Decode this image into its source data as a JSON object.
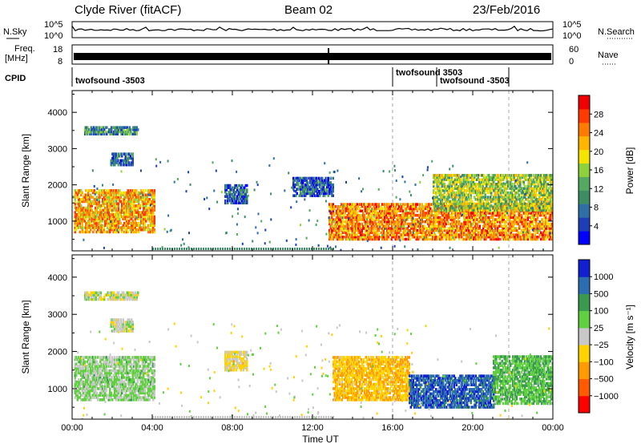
{
  "header": {
    "station": "Clyde River (fitACF)",
    "beam": "Beam 02",
    "date": "23/Feb/2016"
  },
  "top_panels": {
    "nsky_label": "N.Sky",
    "nsearch_label": "N.Search",
    "noise_ticks": [
      "10^5",
      "10^0"
    ],
    "freq_label_1": "Freq.",
    "freq_label_2": "[MHz]",
    "freq_ticks": [
      "18",
      "8"
    ],
    "nave_label": "Nave",
    "nave_ticks": [
      "60",
      "0"
    ],
    "cpid_label": "CPID",
    "cpid_entries": [
      {
        "text": "twofsound -3503",
        "start": 0.0
      },
      {
        "text": "twofsound 3503",
        "start": 16.0
      },
      {
        "text": "twofsound -3503",
        "start": 18.2
      }
    ]
  },
  "chart_data": [
    {
      "type": "heatmap",
      "title": "",
      "quantity": "Power",
      "colorbar_label": "Power [dB]",
      "colorbar_ticks": [
        "28",
        "24",
        "20",
        "16",
        "12",
        "8",
        "4"
      ],
      "colorbar_range": [
        0,
        32
      ],
      "colors": [
        "#0000ff",
        "#1c3fb8",
        "#2e6fa6",
        "#3c8c64",
        "#55a862",
        "#8fd13a",
        "#f5e400",
        "#ffb400",
        "#ff7a00",
        "#ff3a00",
        "#f00000"
      ],
      "ylabel": "Slant Range [km]",
      "y_ticks": [
        1000,
        2000,
        3000,
        4000
      ],
      "ylim": [
        180,
        4600
      ],
      "xlim": [
        0,
        24
      ],
      "x_ticks": [
        "00:00",
        "04:00",
        "08:00",
        "12:00",
        "16:00",
        "20:00",
        "00:00"
      ],
      "regions": [
        {
          "t": [
            0.1,
            4.1
          ],
          "r": [
            700,
            1900
          ],
          "v": 22
        },
        {
          "t": [
            0.6,
            3.3
          ],
          "r": [
            3400,
            3620
          ],
          "v": 10
        },
        {
          "t": [
            1.9,
            3.0
          ],
          "r": [
            2550,
            2900
          ],
          "v": 8
        },
        {
          "t": [
            7.6,
            8.7
          ],
          "r": [
            1500,
            2000
          ],
          "v": 7
        },
        {
          "t": [
            11.0,
            13.0
          ],
          "r": [
            1700,
            2200
          ],
          "v": 6
        },
        {
          "t": [
            12.8,
            24.0
          ],
          "r": [
            500,
            1500
          ],
          "v": 24
        },
        {
          "t": [
            18.0,
            24.0
          ],
          "r": [
            1300,
            2300
          ],
          "v": 16
        }
      ]
    },
    {
      "type": "heatmap",
      "title": "",
      "quantity": "Velocity",
      "colorbar_label": "Velocity [m s⁻¹]",
      "colorbar_ticks": [
        "1000",
        "500",
        "100",
        "25",
        "−25",
        "−100",
        "−500",
        "−1000"
      ],
      "colorbar_range": [
        -1000,
        1000
      ],
      "colors": [
        "#ff0000",
        "#ff5a00",
        "#ff9a00",
        "#ffd200",
        "#c8c8c8",
        "#60d040",
        "#3a9a50",
        "#2c6cb0",
        "#1020d0"
      ],
      "ylabel": "Slant Range [km]",
      "y_ticks": [
        1000,
        2000,
        3000,
        4000
      ],
      "ylim": [
        180,
        4600
      ],
      "xlim": [
        0,
        24
      ],
      "x_ticks": [
        "00:00",
        "04:00",
        "08:00",
        "12:00",
        "16:00",
        "20:00",
        "00:00"
      ],
      "xlabel": "Time UT",
      "regions": [
        {
          "t": [
            0.1,
            4.1
          ],
          "r": [
            700,
            1900
          ],
          "v": 150
        },
        {
          "t": [
            0.6,
            3.3
          ],
          "r": [
            3400,
            3620
          ],
          "v": 0
        },
        {
          "t": [
            1.9,
            3.0
          ],
          "r": [
            2550,
            2900
          ],
          "v": 0
        },
        {
          "t": [
            7.6,
            8.7
          ],
          "r": [
            1500,
            2000
          ],
          "v": -150
        },
        {
          "t": [
            13.0,
            16.8
          ],
          "r": [
            700,
            1900
          ],
          "v": -300
        },
        {
          "t": [
            16.8,
            21.0
          ],
          "r": [
            500,
            1400
          ],
          "v": 700
        },
        {
          "t": [
            21.0,
            24.0
          ],
          "r": [
            600,
            1900
          ],
          "v": 300
        }
      ]
    }
  ],
  "xlabel": "Time UT"
}
